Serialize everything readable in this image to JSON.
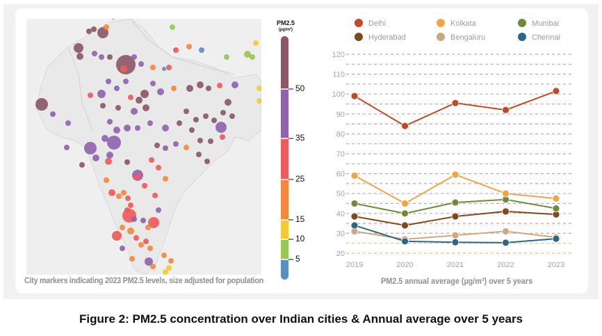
{
  "figure_caption": "Figure 2: PM2.5 concentration over Indian cities & Annual average over 5 years",
  "map": {
    "caption": "City markers indicating 2023 PM2.5 levels, size adjusted for population",
    "colorbar": {
      "title": "PM2.5",
      "unit": "(µg/m³)",
      "bins": [
        {
          "min": 0,
          "max": 5,
          "color": "#5b8ec4"
        },
        {
          "min": 5,
          "max": 10,
          "color": "#9ac652"
        },
        {
          "min": 10,
          "max": 15,
          "color": "#f6c935"
        },
        {
          "min": 15,
          "max": 25,
          "color": "#f5873f"
        },
        {
          "min": 25,
          "max": 35,
          "color": "#ef5a5c"
        },
        {
          "min": 35,
          "max": 50,
          "color": "#8f64ad"
        },
        {
          "min": 50,
          "max": 999,
          "color": "#8b5866"
        }
      ],
      "tick_labels": [
        "50",
        "35",
        "25",
        "15",
        "10",
        "5"
      ]
    },
    "region_note": "Map of India with city markers colored by 2023 PM2.5 level"
  },
  "chart_data": {
    "type": "line",
    "title": "",
    "xlabel": "PM2.5 annual average (µg/m³) over 5 years",
    "ylabel": "",
    "x": [
      "2019",
      "2020",
      "2021",
      "2022",
      "2023"
    ],
    "ylim": [
      20,
      120
    ],
    "yticks": [
      "120",
      "110",
      "100",
      "90",
      "80",
      "70",
      "60",
      "50",
      "40",
      "30",
      "20"
    ],
    "grid": "dashed horizontal every 5 units",
    "legend_position": "top",
    "series": [
      {
        "name": "Delhi",
        "color": "#bf4a25",
        "values": [
          99,
          84,
          95.5,
          92,
          101.5
        ]
      },
      {
        "name": "Kolkata",
        "color": "#eea544",
        "values": [
          59,
          45,
          59.5,
          50,
          47.5
        ]
      },
      {
        "name": "Mumbai",
        "color": "#6e8a3a",
        "values": [
          45,
          40,
          45.5,
          47,
          42.5
        ]
      },
      {
        "name": "Hyderabad",
        "color": "#7c4a1e",
        "values": [
          38.5,
          34,
          38.5,
          41,
          39.5
        ]
      },
      {
        "name": "Bengaluru",
        "color": "#c9a882",
        "values": [
          31,
          27,
          29,
          31,
          28
        ]
      },
      {
        "name": "Chennai",
        "color": "#2e6684",
        "values": [
          34,
          26,
          25.5,
          25.3,
          27.3
        ]
      }
    ]
  }
}
